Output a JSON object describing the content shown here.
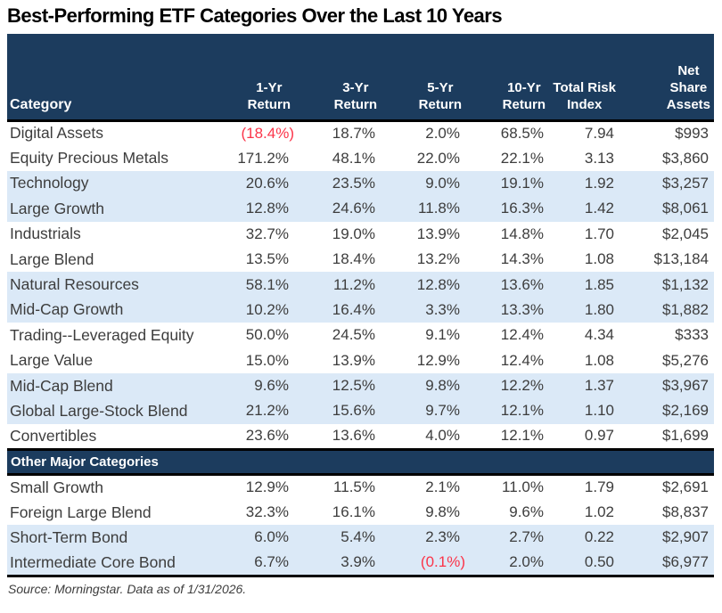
{
  "title": "Best-Performing ETF Categories Over the Last 10 Years",
  "footer": {
    "source_note": "Source: Morningstar. Data as of 1/31/2026."
  },
  "colors": {
    "header_bg": "#1c3c5e",
    "band_bg": "#dbe9f7",
    "negative_text": "#fb3449",
    "body_text": "#3d3d3d",
    "header_text": "#ffffff",
    "border": "#000000",
    "page_bg": "#ffffff"
  },
  "chart_data": {
    "type": "table",
    "title": "Best-Performing ETF Categories Over the Last 10 Years",
    "source": "Source: Morningstar. Data as of 1/31/2026.",
    "layout_hints": {
      "zebra_striping": "two white rows then two light-blue rows, repeating per section",
      "negative_values_in_red_parentheses": true,
      "numeric_alignment": "right",
      "header_alignment": "multi-line centered block, right-aligned over values"
    },
    "header": {
      "category_label": "Category",
      "numeric_columns": [
        [
          "1-Yr",
          "Return"
        ],
        [
          "3-Yr",
          "Return"
        ],
        [
          "5-Yr",
          "Return"
        ],
        [
          "10-Yr",
          "Return"
        ],
        [
          "Total Risk",
          "Index"
        ],
        [
          "Net",
          "Share",
          "Assets"
        ]
      ]
    },
    "columns_flat": [
      "Category",
      "1-Yr Return",
      "3-Yr Return",
      "5-Yr Return",
      "10-Yr Return",
      "Total Risk Index",
      "Net Share Assets"
    ],
    "sections": [
      {
        "label": null,
        "rows": [
          {
            "category": "Digital Assets",
            "values": [
              "(18.4%)",
              "18.7%",
              "2.0%",
              "68.5%",
              "7.94",
              "$993"
            ]
          },
          {
            "category": "Equity Precious Metals",
            "values": [
              "171.2%",
              "48.1%",
              "22.0%",
              "22.1%",
              "3.13",
              "$3,860"
            ]
          },
          {
            "category": "Technology",
            "values": [
              "20.6%",
              "23.5%",
              "9.0%",
              "19.1%",
              "1.92",
              "$3,257"
            ]
          },
          {
            "category": "Large Growth",
            "values": [
              "12.8%",
              "24.6%",
              "11.8%",
              "16.3%",
              "1.42",
              "$8,061"
            ]
          },
          {
            "category": "Industrials",
            "values": [
              "32.7%",
              "19.0%",
              "13.9%",
              "14.8%",
              "1.70",
              "$2,045"
            ]
          },
          {
            "category": "Large Blend",
            "values": [
              "13.5%",
              "18.4%",
              "13.2%",
              "14.3%",
              "1.08",
              "$13,184"
            ]
          },
          {
            "category": "Natural Resources",
            "values": [
              "58.1%",
              "11.2%",
              "12.8%",
              "13.6%",
              "1.85",
              "$1,132"
            ]
          },
          {
            "category": "Mid-Cap Growth",
            "values": [
              "10.2%",
              "16.4%",
              "3.3%",
              "13.3%",
              "1.80",
              "$1,882"
            ]
          },
          {
            "category": "Trading--Leveraged Equity",
            "values": [
              "50.0%",
              "24.5%",
              "9.1%",
              "12.4%",
              "4.34",
              "$333"
            ]
          },
          {
            "category": "Large Value",
            "values": [
              "15.0%",
              "13.9%",
              "12.9%",
              "12.4%",
              "1.08",
              "$5,276"
            ]
          },
          {
            "category": "Mid-Cap Blend",
            "values": [
              "9.6%",
              "12.5%",
              "9.8%",
              "12.2%",
              "1.37",
              "$3,967"
            ]
          },
          {
            "category": "Global Large-Stock Blend",
            "values": [
              "21.2%",
              "15.6%",
              "9.7%",
              "12.1%",
              "1.10",
              "$2,169"
            ]
          },
          {
            "category": "Convertibles",
            "values": [
              "23.6%",
              "13.6%",
              "4.0%",
              "12.1%",
              "0.97",
              "$1,699"
            ]
          }
        ]
      },
      {
        "label": "Other Major Categories",
        "rows": [
          {
            "category": "Small Growth",
            "values": [
              "12.9%",
              "11.5%",
              "2.1%",
              "11.0%",
              "1.79",
              "$2,691"
            ]
          },
          {
            "category": "Foreign Large Blend",
            "values": [
              "32.3%",
              "16.1%",
              "9.8%",
              "9.6%",
              "1.02",
              "$8,837"
            ]
          },
          {
            "category": "Short-Term Bond",
            "values": [
              "6.0%",
              "5.4%",
              "2.3%",
              "2.7%",
              "0.22",
              "$2,907"
            ]
          },
          {
            "category": "Intermediate Core Bond",
            "values": [
              "6.7%",
              "3.9%",
              "(0.1%)",
              "2.0%",
              "0.50",
              "$6,977"
            ]
          }
        ]
      }
    ]
  }
}
